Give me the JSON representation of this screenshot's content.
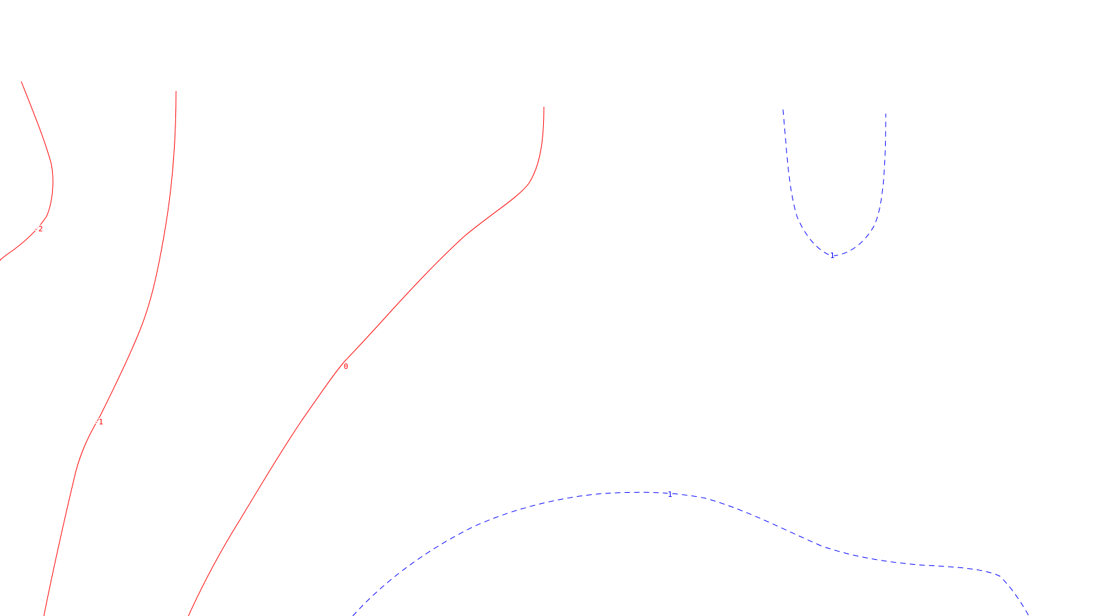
{
  "chart_data": {
    "type": "contour",
    "title": "",
    "xlabel": "",
    "ylabel": "",
    "grid": false,
    "legend": "none",
    "colors": {
      "negative": "#ff0000",
      "positive": "#0000ff"
    },
    "contours": [
      {
        "level": "-2",
        "label": "-2",
        "style": "solid",
        "color": "#ff0000"
      },
      {
        "level": "-1",
        "label": "-1",
        "style": "solid",
        "color": "#ff0000"
      },
      {
        "level": "0",
        "label": "0",
        "style": "solid",
        "color": "#ff0000"
      },
      {
        "level": "1",
        "label": "1",
        "style": "dashed",
        "color": "#0000ff"
      },
      {
        "level": "1",
        "label": "1",
        "style": "dashed",
        "color": "#0000ff"
      }
    ]
  }
}
